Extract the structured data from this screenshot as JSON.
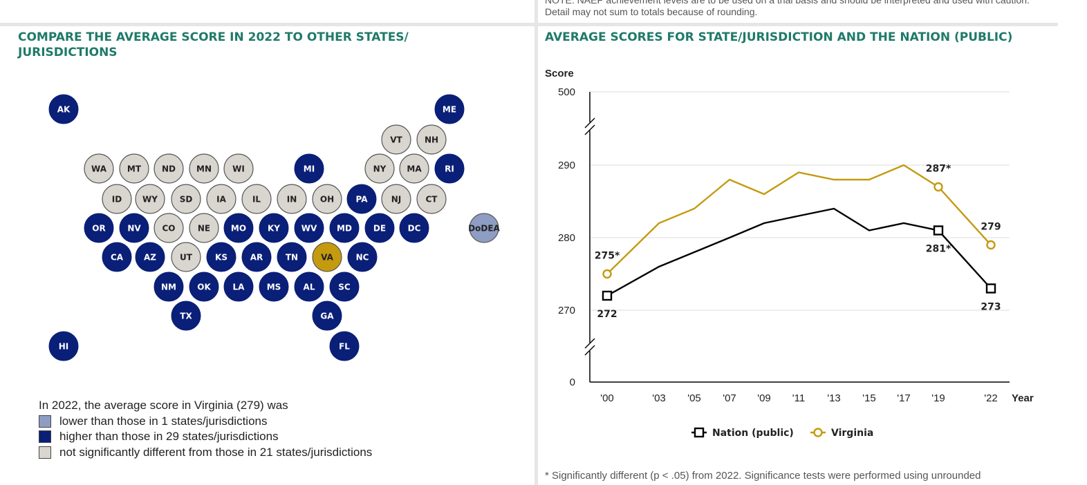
{
  "note": "NOTE: NAEP achievement levels are to be used on a trial basis and should be interpreted and used with caution. Detail may not sum to totals because of rounding.",
  "left_panel": {
    "title": "COMPARE THE AVERAGE SCORE IN 2022 TO OTHER STATES/ JURISDICTIONS",
    "colors": {
      "lower": "#8e9dc3",
      "higher": "#0a1f78",
      "not_significant": "#d9d5cf",
      "focal": "#c49a0e"
    },
    "states": [
      {
        "code": "AK",
        "status": "higher"
      },
      {
        "code": "ME",
        "status": "higher"
      },
      {
        "code": "VT",
        "status": "not_significant"
      },
      {
        "code": "NH",
        "status": "not_significant"
      },
      {
        "code": "WA",
        "status": "not_significant"
      },
      {
        "code": "MT",
        "status": "not_significant"
      },
      {
        "code": "ND",
        "status": "not_significant"
      },
      {
        "code": "MN",
        "status": "not_significant"
      },
      {
        "code": "WI",
        "status": "not_significant"
      },
      {
        "code": "MI",
        "status": "higher"
      },
      {
        "code": "NY",
        "status": "not_significant"
      },
      {
        "code": "MA",
        "status": "not_significant"
      },
      {
        "code": "RI",
        "status": "higher"
      },
      {
        "code": "ID",
        "status": "not_significant"
      },
      {
        "code": "WY",
        "status": "not_significant"
      },
      {
        "code": "SD",
        "status": "not_significant"
      },
      {
        "code": "IA",
        "status": "not_significant"
      },
      {
        "code": "IL",
        "status": "not_significant"
      },
      {
        "code": "IN",
        "status": "not_significant"
      },
      {
        "code": "OH",
        "status": "not_significant"
      },
      {
        "code": "PA",
        "status": "higher"
      },
      {
        "code": "NJ",
        "status": "not_significant"
      },
      {
        "code": "CT",
        "status": "not_significant"
      },
      {
        "code": "OR",
        "status": "higher"
      },
      {
        "code": "NV",
        "status": "higher"
      },
      {
        "code": "CO",
        "status": "not_significant"
      },
      {
        "code": "NE",
        "status": "not_significant"
      },
      {
        "code": "MO",
        "status": "higher"
      },
      {
        "code": "KY",
        "status": "higher"
      },
      {
        "code": "WV",
        "status": "higher"
      },
      {
        "code": "MD",
        "status": "higher"
      },
      {
        "code": "DE",
        "status": "higher"
      },
      {
        "code": "DC",
        "status": "higher"
      },
      {
        "code": "DoDEA",
        "status": "lower"
      },
      {
        "code": "CA",
        "status": "higher"
      },
      {
        "code": "AZ",
        "status": "higher"
      },
      {
        "code": "UT",
        "status": "not_significant"
      },
      {
        "code": "KS",
        "status": "higher"
      },
      {
        "code": "AR",
        "status": "higher"
      },
      {
        "code": "TN",
        "status": "higher"
      },
      {
        "code": "VA",
        "status": "focal"
      },
      {
        "code": "NC",
        "status": "higher"
      },
      {
        "code": "NM",
        "status": "higher"
      },
      {
        "code": "OK",
        "status": "higher"
      },
      {
        "code": "LA",
        "status": "higher"
      },
      {
        "code": "MS",
        "status": "higher"
      },
      {
        "code": "AL",
        "status": "higher"
      },
      {
        "code": "SC",
        "status": "higher"
      },
      {
        "code": "TX",
        "status": "higher"
      },
      {
        "code": "GA",
        "status": "higher"
      },
      {
        "code": "HI",
        "status": "higher"
      },
      {
        "code": "FL",
        "status": "higher"
      }
    ],
    "legend": {
      "intro": "In 2022, the average score in Virginia (279) was",
      "items": [
        {
          "status": "lower",
          "text": "lower than those in 1 states/jurisdictions"
        },
        {
          "status": "higher",
          "text": "higher than those in 29 states/jurisdictions"
        },
        {
          "status": "not_significant",
          "text": "not significantly different from those in 21 states/jurisdictions"
        }
      ]
    }
  },
  "right_panel": {
    "title": "AVERAGE SCORES FOR STATE/JURISDICTION AND THE NATION (PUBLIC)",
    "footnote": "* Significantly different (p < .05) from 2022. Significance tests were performed using unrounded"
  },
  "chart_data": {
    "type": "line",
    "ylabel": "Score",
    "xlabel": "Year",
    "y_ticks": [
      0,
      270,
      280,
      290,
      500
    ],
    "y_axis_breaks": [
      [
        0,
        270
      ],
      [
        290,
        500
      ]
    ],
    "x": [
      "'00",
      "'03",
      "'05",
      "'07",
      "'09",
      "'11",
      "'13",
      "'15",
      "'17",
      "'19",
      "'22"
    ],
    "series": [
      {
        "name": "Nation (public)",
        "color": "#000000",
        "marker": "square",
        "values": [
          272,
          276,
          278,
          280,
          282,
          283,
          284,
          281,
          282,
          281,
          273
        ],
        "labels": [
          {
            "index": 0,
            "text": "272"
          },
          {
            "index": 9,
            "text": "281*"
          },
          {
            "index": 10,
            "text": "273"
          }
        ]
      },
      {
        "name": "Virginia",
        "color": "#c49a0e",
        "marker": "circle",
        "values": [
          275,
          282,
          284,
          288,
          286,
          289,
          288,
          288,
          290,
          287,
          279
        ],
        "labels": [
          {
            "index": 0,
            "text": "275*"
          },
          {
            "index": 9,
            "text": "287*"
          },
          {
            "index": 10,
            "text": "279"
          }
        ]
      }
    ]
  }
}
